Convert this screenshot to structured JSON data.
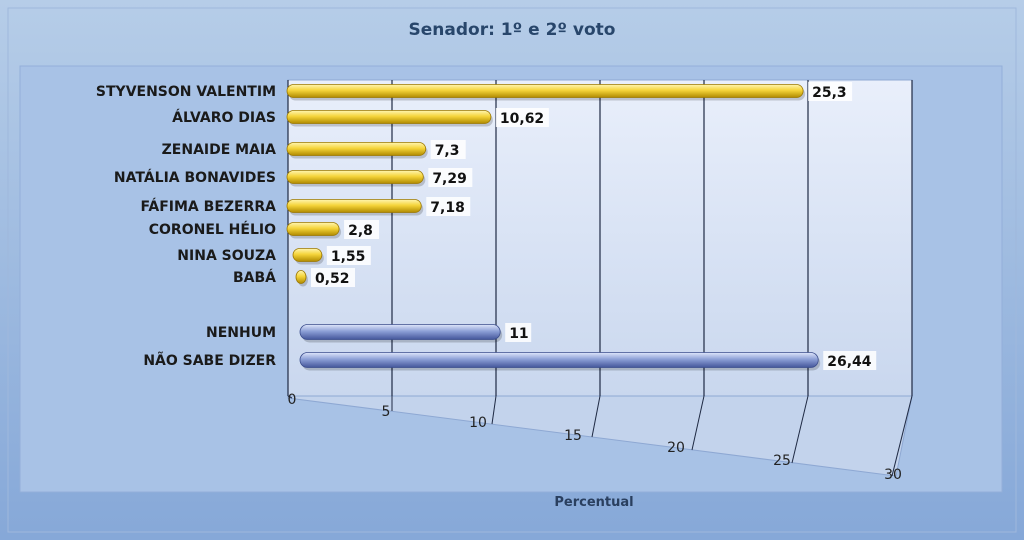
{
  "chart_data": {
    "type": "bar",
    "orientation": "horizontal",
    "title": "Senador: 1º e 2º voto",
    "xlabel": "Percentual",
    "ylabel": "",
    "xlim": [
      0,
      30
    ],
    "xticks": [
      "0",
      "5",
      "10",
      "15",
      "20",
      "25",
      "30"
    ],
    "grid": true,
    "categories": [
      "STYVENSON VALENTIM",
      "ÁLVARO DIAS",
      "ZENAIDE MAIA",
      "NATÁLIA BONAVIDES",
      "FÁFIMA BEZERRA",
      "CORONEL HÉLIO",
      "NINA SOUZA",
      "BABÁ",
      "NENHUM",
      "NÃO SABE DIZER"
    ],
    "values": [
      25.3,
      10.62,
      7.3,
      7.29,
      7.18,
      2.8,
      1.55,
      0.52,
      11,
      26.44
    ],
    "value_labels": [
      "25,3",
      "10,62",
      "7,3",
      "7,29",
      "7,18",
      "2,8",
      "1,55",
      "0,52",
      "11",
      "26,44"
    ],
    "colors": [
      "#f2cf2a",
      "#f2cf2a",
      "#f2cf2a",
      "#f2cf2a",
      "#f2cf2a",
      "#f2cf2a",
      "#f2cf2a",
      "#f2cf2a",
      "#8c9fd6",
      "#8c9fd6"
    ]
  }
}
